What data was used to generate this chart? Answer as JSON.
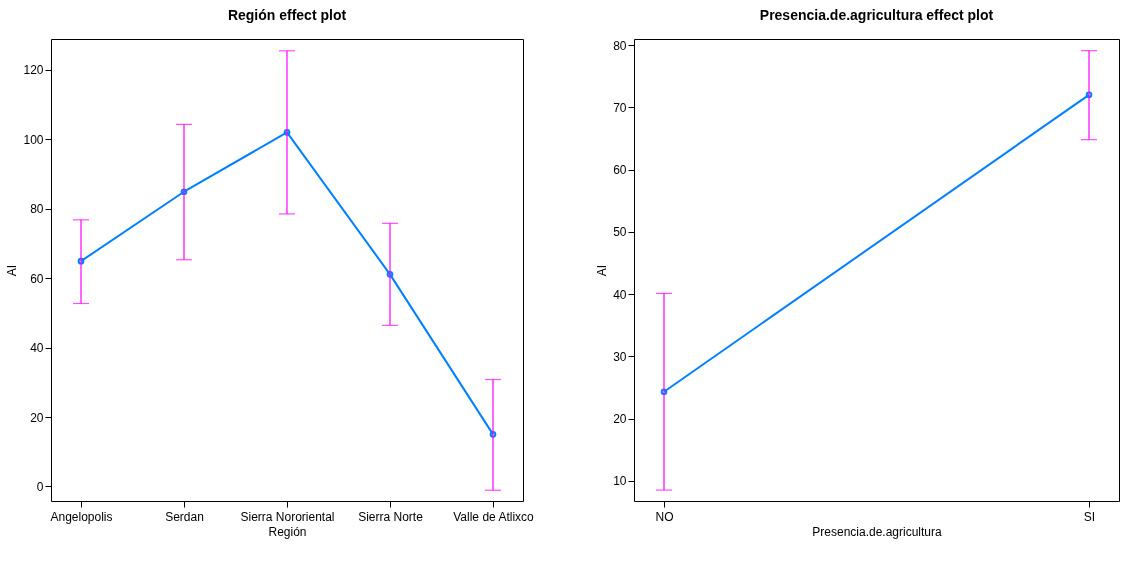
{
  "chart_data": [
    {
      "type": "line",
      "title": "Región effect plot",
      "xlabel": "Región",
      "ylabel": "AI",
      "categories": [
        "Angelopolis",
        "Serdan",
        "Sierra Nororiental",
        "Sierra Norte",
        "Valle de Atlixco"
      ],
      "series": [
        {
          "color": "#0080ff",
          "values": [
            64.9,
            84.9,
            102.0,
            61.1,
            15.0
          ],
          "errors": [
            [
              52.7,
              76.8
            ],
            [
              65.3,
              104.3
            ],
            [
              78.5,
              125.5
            ],
            [
              46.4,
              75.8
            ],
            [
              -1.1,
              30.8
            ]
          ]
        }
      ],
      "ylim": [
        -4.2,
        128.9
      ],
      "yticks": [
        0,
        20,
        40,
        60,
        80,
        100,
        120
      ],
      "marker": "circle",
      "line_style": "solid"
    },
    {
      "type": "line",
      "title": "Presencia.de.agricultura effect plot",
      "xlabel": "Presencia.de.agricultura",
      "ylabel": "AI",
      "categories": [
        "NO",
        "SI"
      ],
      "series": [
        {
          "color": "#0080ff",
          "values": [
            24.3,
            72.0
          ],
          "errors": [
            [
              8.5,
              40.1
            ],
            [
              64.8,
              79.1
            ]
          ]
        }
      ],
      "ylim": [
        6.75,
        80.97
      ],
      "yticks": [
        10,
        20,
        30,
        40,
        50,
        60,
        70,
        80
      ],
      "marker": "circle",
      "line_style": "solid"
    }
  ]
}
